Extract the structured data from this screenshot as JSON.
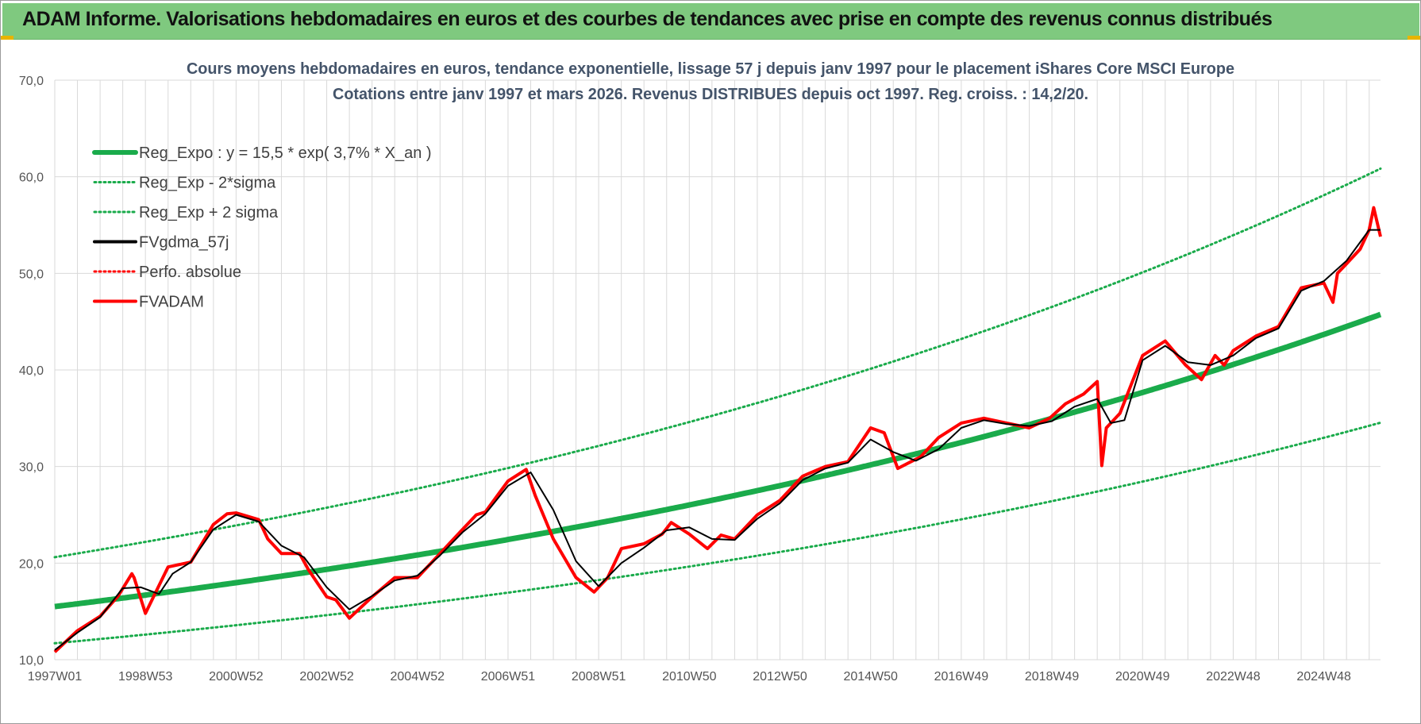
{
  "banner": {
    "title": "ADAM Informe. Valorisations hebdomadaires en euros et des courbes de tendances avec prise en compte des revenus connus distribués"
  },
  "colors": {
    "banner_bg": "#7fc97f",
    "trend_green": "#1aab4b",
    "fvadam_red": "#ff0000",
    "fvgdma_black": "#000000",
    "grid": "#d9d9d9",
    "accent_yellow": "#e8b400"
  },
  "chart_data": {
    "type": "line",
    "title": "Cours moyens hebdomadaires en euros, tendance exponentielle, lissage 57 j depuis janv 1997 pour le placement iShares Core MSCI Europe",
    "subtitle": "Cotations entre janv 1997 et mars 2026. Revenus DISTRIBUES depuis oct 1997. Reg. croiss. : 14,2/20.",
    "xlabel": "",
    "ylabel": "",
    "x_range_years": [
      1997.0,
      2026.25
    ],
    "ylim": [
      10,
      70
    ],
    "yticks": [
      10,
      20,
      30,
      40,
      50,
      60,
      70
    ],
    "ytick_labels": [
      "10,0",
      "20,0",
      "30,0",
      "40,0",
      "50,0",
      "60,0",
      "70,0"
    ],
    "xticks": [
      {
        "label": "1997W01",
        "year": 1997.0
      },
      {
        "label": "1998W53",
        "year": 1999.0
      },
      {
        "label": "2000W52",
        "year": 2001.0
      },
      {
        "label": "2002W52",
        "year": 2003.0
      },
      {
        "label": "2004W52",
        "year": 2005.0
      },
      {
        "label": "2006W51",
        "year": 2007.0
      },
      {
        "label": "2008W51",
        "year": 2009.0
      },
      {
        "label": "2010W50",
        "year": 2011.0
      },
      {
        "label": "2012W50",
        "year": 2013.0
      },
      {
        "label": "2014W50",
        "year": 2015.0
      },
      {
        "label": "2016W49",
        "year": 2017.0
      },
      {
        "label": "2018W49",
        "year": 2019.0
      },
      {
        "label": "2020W49",
        "year": 2021.0
      },
      {
        "label": "2022W48",
        "year": 2023.0
      },
      {
        "label": "2024W48",
        "year": 2025.0
      }
    ],
    "grid": true,
    "legend_position": "top-left",
    "legend": [
      {
        "name": "Reg_Expo : y = 15,5 * exp( 3,7% *  X_an )",
        "color": "#1aab4b",
        "style": "solid-thick"
      },
      {
        "name": "Reg_Exp - 2*sigma",
        "color": "#1aab4b",
        "style": "dotted"
      },
      {
        "name": "Reg_Exp + 2 sigma",
        "color": "#1aab4b",
        "style": "dotted"
      },
      {
        "name": "FVgdma_57j",
        "color": "#000000",
        "style": "solid"
      },
      {
        "name": "Perfo. absolue",
        "color": "#ff0000",
        "style": "dotted"
      },
      {
        "name": "FVADAM",
        "color": "#ff0000",
        "style": "solid"
      }
    ],
    "series": [
      {
        "name": "Reg_Expo",
        "model": "exponential",
        "a": 15.5,
        "rate": 0.037,
        "x": [
          1997.0,
          2000.0,
          2003.0,
          2006.0,
          2009.0,
          2012.0,
          2015.0,
          2018.0,
          2021.0,
          2024.0,
          2026.25
        ],
        "values": [
          15.5,
          17.3,
          19.3,
          21.5,
          23.9,
          26.7,
          29.7,
          33.2,
          37.0,
          41.3,
          46.6
        ]
      },
      {
        "name": "Reg_Exp - 2*sigma",
        "x": [
          1997.0,
          2000.0,
          2003.0,
          2006.0,
          2009.0,
          2012.0,
          2015.0,
          2018.0,
          2021.0,
          2024.0,
          2026.25
        ],
        "values": [
          11.6,
          12.9,
          14.4,
          16.0,
          17.9,
          19.9,
          22.2,
          24.8,
          27.6,
          30.8,
          35.2
        ]
      },
      {
        "name": "Reg_Exp + 2 sigma",
        "x": [
          1997.0,
          2000.0,
          2003.0,
          2006.0,
          2009.0,
          2012.0,
          2015.0,
          2018.0,
          2021.0,
          2024.0,
          2026.25
        ],
        "values": [
          20.6,
          23.0,
          25.6,
          28.5,
          31.8,
          35.4,
          39.5,
          44.1,
          49.2,
          54.8,
          61.7
        ]
      },
      {
        "name": "FVADAM",
        "x": [
          1997.0,
          1997.5,
          1998.0,
          1998.4,
          1998.7,
          1998.75,
          1999.0,
          1999.5,
          2000.0,
          2000.5,
          2000.8,
          2001.0,
          2001.5,
          2001.7,
          2002.0,
          2002.4,
          2002.6,
          2003.0,
          2003.2,
          2003.5,
          2004.0,
          2004.5,
          2005.0,
          2005.5,
          2006.0,
          2006.3,
          2006.5,
          2007.0,
          2007.4,
          2007.6,
          2008.0,
          2008.5,
          2008.9,
          2009.2,
          2009.5,
          2010.0,
          2010.4,
          2010.6,
          2011.0,
          2011.4,
          2011.7,
          2012.0,
          2012.5,
          2013.0,
          2013.5,
          2014.0,
          2014.5,
          2015.0,
          2015.3,
          2015.6,
          2016.1,
          2016.5,
          2017.0,
          2017.5,
          2018.0,
          2018.5,
          2018.95,
          2019.3,
          2019.7,
          2020.0,
          2020.1,
          2020.2,
          2020.5,
          2021.0,
          2021.5,
          2021.95,
          2022.3,
          2022.6,
          2022.8,
          2023.0,
          2023.5,
          2024.0,
          2024.5,
          2025.0,
          2025.2,
          2025.3,
          2025.5,
          2025.8,
          2026.0,
          2026.1,
          2026.25
        ],
        "values": [
          10.8,
          13.0,
          14.5,
          16.6,
          18.9,
          18.5,
          14.8,
          19.6,
          20.1,
          24.0,
          25.1,
          25.2,
          24.5,
          22.5,
          21.0,
          21.0,
          19.3,
          16.5,
          16.2,
          14.3,
          16.5,
          18.5,
          18.5,
          21.0,
          23.5,
          25.0,
          25.3,
          28.5,
          29.7,
          27.0,
          22.5,
          18.5,
          17.0,
          18.5,
          21.5,
          22.0,
          23.0,
          24.2,
          23.0,
          21.5,
          22.9,
          22.5,
          25.0,
          26.5,
          29.0,
          30.0,
          30.5,
          34.0,
          33.5,
          29.8,
          31.0,
          33.0,
          34.5,
          35.0,
          34.5,
          34.0,
          35.0,
          36.5,
          37.5,
          38.8,
          30.1,
          34.0,
          35.5,
          41.5,
          43.0,
          40.5,
          39.0,
          41.5,
          40.5,
          42.0,
          43.5,
          44.5,
          48.5,
          49.0,
          47.0,
          50.0,
          51.0,
          52.5,
          54.5,
          56.8,
          53.8
        ]
      },
      {
        "name": "FVgdma_57j",
        "x": [
          1997.0,
          1997.5,
          1998.0,
          1998.5,
          1998.9,
          1999.3,
          1999.6,
          2000.0,
          2000.5,
          2001.0,
          2001.5,
          2002.0,
          2002.5,
          2003.0,
          2003.5,
          2004.0,
          2004.5,
          2005.0,
          2005.5,
          2006.0,
          2006.5,
          2007.0,
          2007.5,
          2008.0,
          2008.5,
          2009.0,
          2009.5,
          2010.0,
          2010.5,
          2011.0,
          2011.5,
          2012.0,
          2012.5,
          2013.0,
          2013.5,
          2014.0,
          2014.5,
          2015.0,
          2015.5,
          2016.0,
          2016.5,
          2017.0,
          2017.5,
          2018.0,
          2018.5,
          2019.0,
          2019.5,
          2020.0,
          2020.3,
          2020.6,
          2021.0,
          2021.5,
          2022.0,
          2022.5,
          2023.0,
          2023.5,
          2024.0,
          2024.5,
          2025.0,
          2025.5,
          2026.0,
          2026.25
        ],
        "values": [
          11.0,
          12.8,
          14.4,
          17.4,
          17.5,
          16.8,
          18.9,
          20.1,
          23.5,
          25.0,
          24.3,
          21.8,
          20.6,
          17.5,
          15.2,
          16.6,
          18.2,
          18.7,
          20.8,
          23.2,
          25.1,
          28.0,
          29.4,
          25.5,
          20.2,
          17.6,
          20.0,
          21.6,
          23.4,
          23.7,
          22.5,
          22.4,
          24.6,
          26.2,
          28.6,
          29.8,
          30.4,
          32.8,
          31.5,
          30.6,
          31.8,
          34.0,
          34.8,
          34.4,
          34.2,
          34.7,
          36.2,
          37.0,
          34.5,
          34.8,
          41.0,
          42.5,
          40.8,
          40.5,
          41.5,
          43.3,
          44.3,
          48.2,
          49.2,
          51.3,
          54.5,
          54.5
        ]
      }
    ]
  }
}
